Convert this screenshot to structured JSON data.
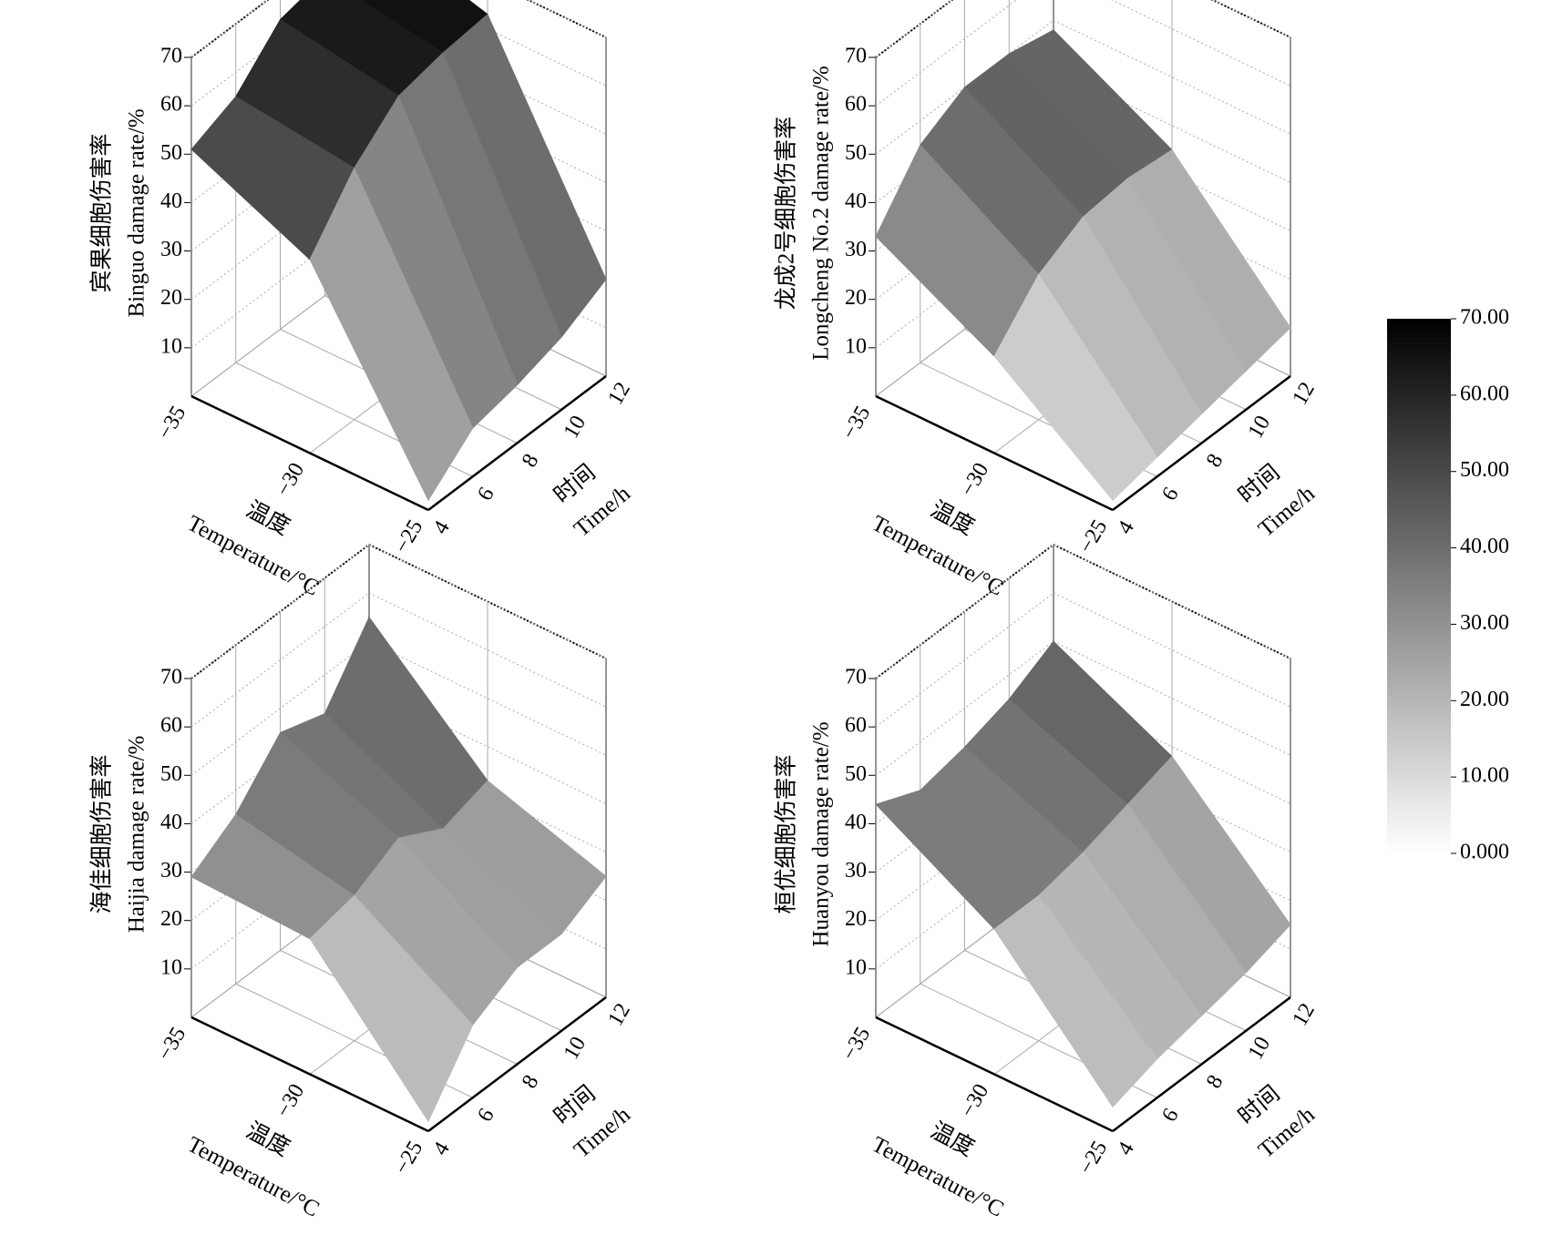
{
  "chart_data": [
    {
      "type": "surface",
      "z_title_cn": "宾果细胞伤害率",
      "z_title_en": "Binguo damage rate/%",
      "x_title_cn": "温度",
      "x_title_en": "Temperature/°C",
      "y_title_cn": "时间",
      "y_title_en": "Time/h",
      "x": [
        -35,
        -30,
        -25
      ],
      "y": [
        4,
        6,
        8,
        10,
        12
      ],
      "values": [
        [
          51,
          55,
          64,
          66,
          70
        ],
        [
          40,
          52,
          60,
          62,
          63
        ],
        [
          2,
          10,
          12,
          15,
          20
        ]
      ],
      "xlim": [
        -35,
        -25
      ],
      "xticks": [
        {
          "value": -35,
          "label": "−35"
        },
        {
          "value": -30,
          "label": "−30"
        },
        {
          "value": -25,
          "label": "−25"
        }
      ],
      "ylim": [
        4,
        12
      ],
      "yticks": [
        4,
        6,
        8,
        10,
        12
      ],
      "zlim": [
        0,
        70
      ],
      "zticks": [
        10,
        20,
        30,
        40,
        50,
        60,
        70
      ]
    },
    {
      "type": "surface",
      "z_title_cn": "龙成2号细胞伤害率",
      "z_title_en": "Longcheng No.2 damage rate/%",
      "x_title_cn": "温度",
      "x_title_en": "Temperature/°C",
      "y_title_cn": "时间",
      "y_title_en": "Time/h",
      "x": [
        -35,
        -30,
        -25
      ],
      "y": [
        4,
        6,
        8,
        10,
        12
      ],
      "values": [
        [
          33,
          45,
          50,
          50,
          48
        ],
        [
          20,
          30,
          35,
          36,
          35
        ],
        [
          2,
          4,
          6,
          8,
          10
        ]
      ],
      "xlim": [
        -35,
        -25
      ],
      "xticks": [
        {
          "value": -35,
          "label": "−35"
        },
        {
          "value": -30,
          "label": "−30"
        },
        {
          "value": -25,
          "label": "−25"
        }
      ],
      "ylim": [
        4,
        12
      ],
      "yticks": [
        4,
        6,
        8,
        10,
        12
      ],
      "zlim": [
        0,
        70
      ],
      "zticks": [
        10,
        20,
        30,
        40,
        50,
        60,
        70
      ]
    },
    {
      "type": "surface",
      "z_title_cn": "海佳细胞伤害率",
      "z_title_en": "Haijia damage rate/%",
      "x_title_cn": "温度",
      "x_title_en": "Temperature/°C",
      "y_title_cn": "时间",
      "y_title_en": "Time/h",
      "x": [
        -35,
        -30,
        -25
      ],
      "y": [
        4,
        6,
        8,
        10,
        12
      ],
      "values": [
        [
          29,
          35,
          45,
          42,
          55
        ],
        [
          28,
          30,
          35,
          30,
          33
        ],
        [
          2,
          15,
          20,
          20,
          25
        ]
      ],
      "xlim": [
        -35,
        -25
      ],
      "xticks": [
        {
          "value": -35,
          "label": "−35"
        },
        {
          "value": -30,
          "label": "−30"
        },
        {
          "value": -25,
          "label": "−25"
        }
      ],
      "ylim": [
        4,
        12
      ],
      "yticks": [
        4,
        6,
        8,
        10,
        12
      ],
      "zlim": [
        0,
        70
      ],
      "zticks": [
        10,
        20,
        30,
        40,
        50,
        60,
        70
      ]
    },
    {
      "type": "surface",
      "z_title_cn": "桓优细胞伤害率",
      "z_title_en": "Huanyou damage rate/%",
      "x_title_cn": "温度",
      "x_title_en": "Temperature/°C",
      "y_title_cn": "时间",
      "y_title_en": "Time/h",
      "x": [
        -35,
        -30,
        -25
      ],
      "y": [
        4,
        6,
        8,
        10,
        12
      ],
      "values": [
        [
          44,
          40,
          42,
          45,
          50
        ],
        [
          30,
          30,
          32,
          35,
          38
        ],
        [
          5,
          8,
          10,
          12,
          15
        ]
      ],
      "xlim": [
        -35,
        -25
      ],
      "xticks": [
        {
          "value": -35,
          "label": "−35"
        },
        {
          "value": -30,
          "label": "−30"
        },
        {
          "value": -25,
          "label": "−25"
        }
      ],
      "ylim": [
        4,
        12
      ],
      "yticks": [
        4,
        6,
        8,
        10,
        12
      ],
      "zlim": [
        0,
        70
      ],
      "zticks": [
        10,
        20,
        30,
        40,
        50,
        60,
        70
      ]
    },
    {
      "type": "colorbar",
      "clim": [
        0,
        70
      ],
      "colors": [
        "#ffffff",
        "#000000"
      ],
      "ticks": [
        {
          "value": 70,
          "label": "70.00"
        },
        {
          "value": 60,
          "label": "60.00"
        },
        {
          "value": 50,
          "label": "50.00"
        },
        {
          "value": 40,
          "label": "40.00"
        },
        {
          "value": 30,
          "label": "30.00"
        },
        {
          "value": 20,
          "label": "20.00"
        },
        {
          "value": 10,
          "label": "10.00"
        },
        {
          "value": 0,
          "label": "0.000"
        }
      ]
    }
  ]
}
